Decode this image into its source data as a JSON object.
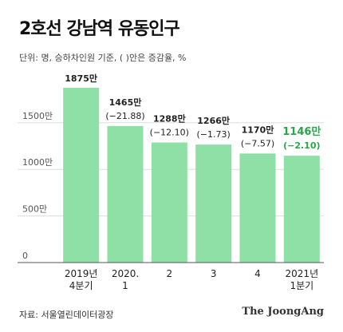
{
  "header": {
    "title": "2호선 강남역 유동인구",
    "subtitle": "단위: 명, 승하차인원 기준, ( )안은 증감율, %"
  },
  "footer": {
    "source": "자료: 서울열린데이터광장",
    "brand": "The JoongAng"
  },
  "colors": {
    "bar": "#8ee0a6",
    "bar_highlight": "#2aa64a",
    "label": "#222222",
    "label_highlight": "#2aa64a",
    "grid": "#dddddd",
    "axis": "#555555"
  },
  "chart_data": {
    "type": "bar",
    "categories": [
      [
        "2019년",
        "4분기"
      ],
      [
        "2020.",
        "1"
      ],
      [
        "2"
      ],
      [
        "3"
      ],
      [
        "4"
      ],
      [
        "2021년",
        "1분기"
      ]
    ],
    "values": [
      1875,
      1465,
      1288,
      1266,
      1170,
      1146
    ],
    "value_labels": [
      "1875만",
      "1465만",
      "1288만",
      "1266만",
      "1170만",
      "1146만"
    ],
    "change_labels": [
      "",
      "(−21.88)",
      "(−12.10)",
      "(−1.73)",
      "(−7.57)",
      "(−2.10)"
    ],
    "highlight_index": 5,
    "yticks": [
      0,
      500,
      1000,
      1500
    ],
    "ytick_labels": [
      "0",
      "500만",
      "1000만",
      "1500만"
    ],
    "ylim": [
      0,
      1875
    ],
    "grid": true,
    "legend": "none"
  }
}
